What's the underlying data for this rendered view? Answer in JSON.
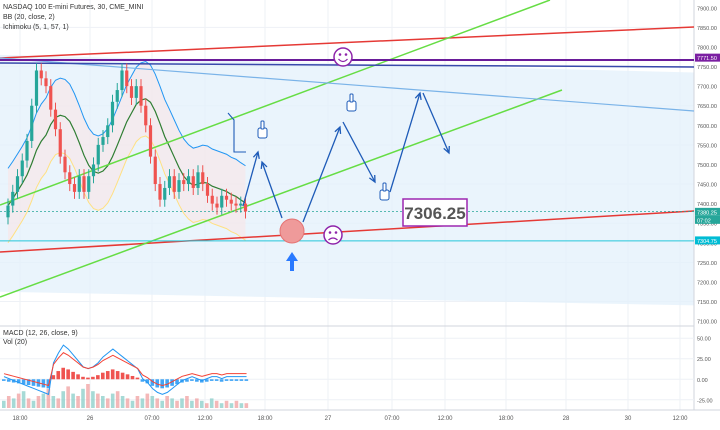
{
  "header": {
    "symbol_line": "NASDAQ 100 E-mini Futures, 30, CME_MINI",
    "indicator_1": "BB (20, close, 2)",
    "indicator_2": "Ichimoku (5, 1, 57, 1)"
  },
  "annotation": {
    "price_box": "7306.25",
    "colors": {
      "box_border": "#9c27b0",
      "box_text": "#555555",
      "arrows": "#1e5bb8",
      "smiley": "#8e24aa"
    },
    "icons": [
      "smiley-happy-icon",
      "smiley-sad-icon",
      "hand-pointer-icon",
      "up-arrow-icon"
    ]
  },
  "price_axis": {
    "ticks": [
      "7900.00",
      "7850.00",
      "7800.00",
      "7750.00",
      "7700.00",
      "7650.00",
      "7600.00",
      "7550.00",
      "7500.00",
      "7450.00",
      "7400.00",
      "7350.00",
      "7300.00",
      "7250.00",
      "7200.00",
      "7150.00",
      "7100.00"
    ],
    "tags": [
      {
        "text": "7771.50",
        "color": "#7b1fa2"
      },
      {
        "text": "7380.25",
        "color": "#26a69a"
      },
      {
        "text": "07:02",
        "color": "#26a69a"
      },
      {
        "text": "7304.75",
        "color": "#00bcd4"
      }
    ]
  },
  "macd_panel": {
    "label_1": "MACD (12, 26, close, 9)",
    "label_2": "Vol (20)",
    "ticks": [
      "50.00",
      "25.00",
      "0.00",
      "-25.00"
    ]
  },
  "time_axis": {
    "ticks": [
      "18:00",
      "26",
      "07:00",
      "12:00",
      "18:00",
      "27",
      "07:00",
      "12:00",
      "18:00",
      "28",
      "30",
      "12:00"
    ]
  },
  "chart_data": [
    {
      "type": "candlestick",
      "title": "NASDAQ 100 E-mini Futures, 30, CME_MINI",
      "ylim": [
        7090,
        7920
      ],
      "horizontal_levels": [
        7771.5,
        7304.75
      ],
      "last_price": 7380.25,
      "closes": [
        7395,
        7430,
        7470,
        7510,
        7560,
        7650,
        7740,
        7720,
        7700,
        7640,
        7590,
        7520,
        7480,
        7450,
        7430,
        7470,
        7430,
        7470,
        7500,
        7550,
        7570,
        7600,
        7660,
        7690,
        7740,
        7700,
        7670,
        7700,
        7650,
        7600,
        7520,
        7450,
        7410,
        7440,
        7470,
        7430,
        7460,
        7450,
        7470,
        7440,
        7480,
        7450,
        7420,
        7400,
        7390,
        7420,
        7410,
        7400,
        7395,
        7400,
        7380
      ]
    },
    {
      "type": "bar",
      "title": "MACD (12, 26, close, 9)",
      "ylim": [
        -35,
        60
      ],
      "values": [
        -2,
        -3,
        -4,
        -5,
        -6,
        -7,
        -8,
        -9,
        -10,
        -11,
        5,
        10,
        14,
        12,
        9,
        6,
        3,
        2,
        3,
        5,
        8,
        10,
        12,
        10,
        8,
        6,
        4,
        2,
        -3,
        -5,
        -8,
        -10,
        -11,
        -10,
        -8,
        -6,
        -4,
        -3,
        -2,
        -3,
        -4,
        -3,
        -2,
        -2,
        -3,
        -2,
        -2,
        -2,
        -2,
        -2
      ]
    }
  ]
}
